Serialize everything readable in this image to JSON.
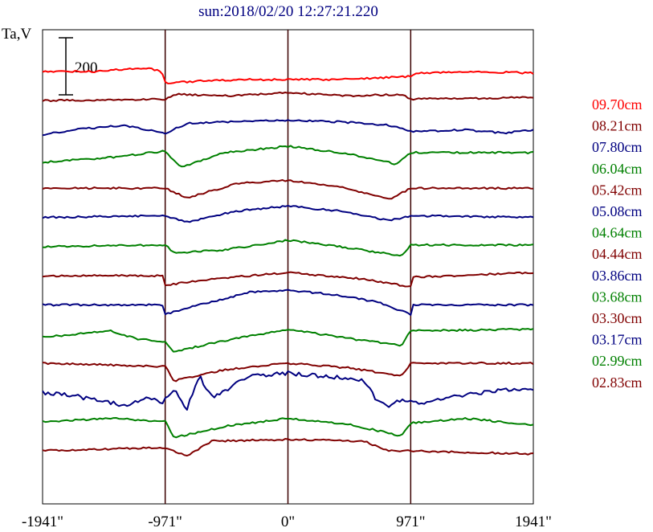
{
  "chart_data": {
    "type": "line",
    "title": "sun:2018/02/20 12:27:21.220",
    "ylabel": "Ta,V",
    "scale_bar": {
      "label": "200",
      "value": 200
    },
    "x_ticks": [
      {
        "label": "-1941\"",
        "value": -1941
      },
      {
        "label": "-971\"",
        "value": -971
      },
      {
        "label": "0\"",
        "value": 0
      },
      {
        "label": "971\"",
        "value": 971
      },
      {
        "label": "1941\"",
        "value": 1941
      }
    ],
    "xlim": [
      -1941,
      1941
    ],
    "vertical_lines_at": [
      -971,
      0,
      971
    ],
    "series": [
      {
        "name": "09.70cm",
        "color": "#ff0000",
        "row": 0
      },
      {
        "name": "08.21cm",
        "color": "#800000",
        "row": 1
      },
      {
        "name": "07.80cm",
        "color": "#000080",
        "row": 2
      },
      {
        "name": "06.04cm",
        "color": "#008000",
        "row": 3
      },
      {
        "name": "05.42cm",
        "color": "#800000",
        "row": 4
      },
      {
        "name": "05.08cm",
        "color": "#000080",
        "row": 5
      },
      {
        "name": "04.64cm",
        "color": "#008000",
        "row": 6
      },
      {
        "name": "04.44cm",
        "color": "#800000",
        "row": 7
      },
      {
        "name": "03.86cm",
        "color": "#000080",
        "row": 8
      },
      {
        "name": "03.68cm",
        "color": "#008000",
        "row": 9
      },
      {
        "name": "03.30cm",
        "color": "#800000",
        "row": 10
      },
      {
        "name": "03.17cm",
        "color": "#000080",
        "row": 11
      },
      {
        "name": "02.99cm",
        "color": "#008000",
        "row": 12
      },
      {
        "name": "02.83cm",
        "color": "#800000",
        "row": 13
      }
    ],
    "curves": [
      {
        "color": "#ff0000",
        "shape": [
          [
            -1941,
            0
          ],
          [
            -1500,
            0
          ],
          [
            -1400,
            2
          ],
          [
            -1100,
            4
          ],
          [
            -1000,
            0
          ],
          [
            -971,
            -14
          ],
          [
            -700,
            -12
          ],
          [
            -300,
            -10
          ],
          [
            0,
            -10
          ],
          [
            300,
            -10
          ],
          [
            700,
            -8
          ],
          [
            971,
            -6
          ],
          [
            1000,
            -2
          ],
          [
            1500,
            0
          ],
          [
            1941,
            -2
          ]
        ]
      },
      {
        "color": "#800000",
        "shape": [
          [
            -1941,
            0
          ],
          [
            -971,
            2
          ],
          [
            -900,
            8
          ],
          [
            -500,
            6
          ],
          [
            0,
            10
          ],
          [
            500,
            6
          ],
          [
            900,
            8
          ],
          [
            971,
            2
          ],
          [
            1941,
            4
          ]
        ]
      },
      {
        "color": "#000080",
        "shape": [
          [
            -1941,
            -6
          ],
          [
            -1700,
            0
          ],
          [
            -1300,
            6
          ],
          [
            -971,
            -4
          ],
          [
            -800,
            8
          ],
          [
            -400,
            10
          ],
          [
            0,
            12
          ],
          [
            400,
            10
          ],
          [
            800,
            6
          ],
          [
            971,
            -2
          ],
          [
            1400,
            0
          ],
          [
            1700,
            -4
          ],
          [
            1941,
            0
          ]
        ]
      },
      {
        "color": "#008000",
        "shape": [
          [
            -1941,
            -4
          ],
          [
            -1400,
            2
          ],
          [
            -971,
            10
          ],
          [
            -850,
            -10
          ],
          [
            -500,
            8
          ],
          [
            0,
            16
          ],
          [
            500,
            6
          ],
          [
            850,
            -6
          ],
          [
            971,
            8
          ],
          [
            1941,
            8
          ]
        ]
      },
      {
        "color": "#800000",
        "shape": [
          [
            -1941,
            0
          ],
          [
            -971,
            0
          ],
          [
            -800,
            -12
          ],
          [
            -400,
            6
          ],
          [
            0,
            10
          ],
          [
            400,
            2
          ],
          [
            800,
            -14
          ],
          [
            971,
            0
          ],
          [
            1941,
            0
          ]
        ]
      },
      {
        "color": "#000080",
        "shape": [
          [
            -1941,
            0
          ],
          [
            -971,
            2
          ],
          [
            -800,
            -6
          ],
          [
            -400,
            8
          ],
          [
            0,
            14
          ],
          [
            400,
            8
          ],
          [
            800,
            -4
          ],
          [
            971,
            2
          ],
          [
            1941,
            0
          ]
        ]
      },
      {
        "color": "#008000",
        "shape": [
          [
            -1941,
            0
          ],
          [
            -971,
            2
          ],
          [
            -900,
            -8
          ],
          [
            -500,
            -4
          ],
          [
            0,
            8
          ],
          [
            500,
            -2
          ],
          [
            900,
            -12
          ],
          [
            971,
            2
          ],
          [
            1941,
            2
          ]
        ]
      },
      {
        "color": "#800000",
        "shape": [
          [
            -1941,
            0
          ],
          [
            -971,
            0
          ],
          [
            -971,
            -12
          ],
          [
            -600,
            -4
          ],
          [
            0,
            4
          ],
          [
            600,
            -4
          ],
          [
            971,
            -14
          ],
          [
            971,
            -2
          ],
          [
            1941,
            4
          ]
        ]
      },
      {
        "color": "#000080",
        "shape": [
          [
            -1941,
            0
          ],
          [
            -971,
            0
          ],
          [
            -971,
            -12
          ],
          [
            -700,
            0
          ],
          [
            -300,
            16
          ],
          [
            0,
            18
          ],
          [
            300,
            14
          ],
          [
            700,
            4
          ],
          [
            971,
            -12
          ],
          [
            971,
            0
          ],
          [
            1941,
            0
          ]
        ]
      },
      {
        "color": "#008000",
        "shape": [
          [
            -1941,
            -4
          ],
          [
            -1400,
            4
          ],
          [
            -1200,
            -6
          ],
          [
            -971,
            -10
          ],
          [
            -900,
            -22
          ],
          [
            -500,
            -8
          ],
          [
            0,
            6
          ],
          [
            500,
            -6
          ],
          [
            900,
            -14
          ],
          [
            971,
            4
          ],
          [
            1941,
            6
          ]
        ]
      },
      {
        "color": "#800000",
        "shape": [
          [
            -1941,
            0
          ],
          [
            -971,
            -4
          ],
          [
            -900,
            -22
          ],
          [
            -500,
            -8
          ],
          [
            0,
            0
          ],
          [
            500,
            -6
          ],
          [
            900,
            -16
          ],
          [
            971,
            0
          ],
          [
            1941,
            0
          ]
        ]
      },
      {
        "color": "#000080",
        "shape": [
          [
            -1941,
            0
          ],
          [
            -1700,
            -4
          ],
          [
            -1300,
            -16
          ],
          [
            -1100,
            -6
          ],
          [
            -1000,
            -14
          ],
          [
            -900,
            4
          ],
          [
            -800,
            -20
          ],
          [
            -700,
            20
          ],
          [
            -600,
            -6
          ],
          [
            -300,
            20
          ],
          [
            0,
            24
          ],
          [
            300,
            20
          ],
          [
            600,
            16
          ],
          [
            700,
            -10
          ],
          [
            800,
            -18
          ],
          [
            900,
            -8
          ],
          [
            1000,
            -14
          ],
          [
            1300,
            -6
          ],
          [
            1700,
            4
          ],
          [
            1941,
            4
          ]
        ]
      },
      {
        "color": "#008000",
        "shape": [
          [
            -1941,
            0
          ],
          [
            -1400,
            4
          ],
          [
            -971,
            0
          ],
          [
            -900,
            -20
          ],
          [
            -500,
            -6
          ],
          [
            0,
            4
          ],
          [
            500,
            -4
          ],
          [
            900,
            -18
          ],
          [
            971,
            -2
          ],
          [
            1400,
            4
          ],
          [
            1941,
            -4
          ]
        ]
      },
      {
        "color": "#800000",
        "shape": [
          [
            -1941,
            0
          ],
          [
            -971,
            4
          ],
          [
            -800,
            -6
          ],
          [
            -600,
            12
          ],
          [
            0,
            14
          ],
          [
            600,
            12
          ],
          [
            800,
            0
          ],
          [
            971,
            0
          ],
          [
            1941,
            -4
          ]
        ]
      }
    ],
    "grid": false
  }
}
